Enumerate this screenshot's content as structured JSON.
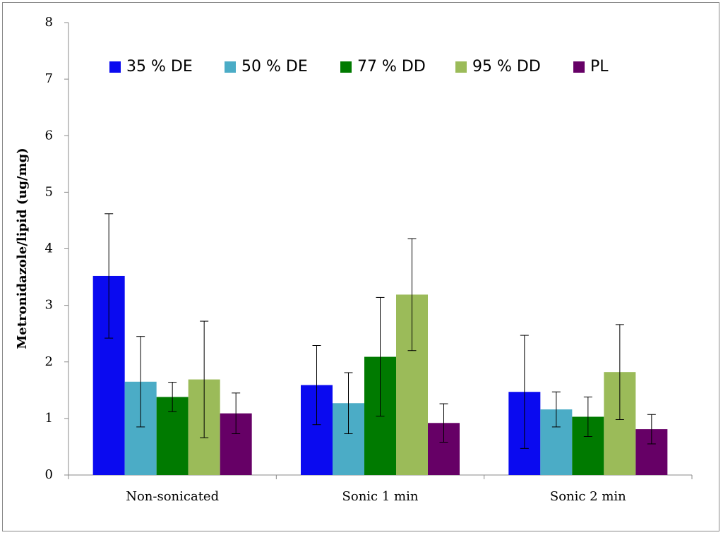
{
  "chart_data": {
    "type": "bar",
    "ylabel": "Metronidazole/lipid (ug/mg)",
    "xlabel": "",
    "ylim": [
      0,
      8
    ],
    "yticks": [
      "0",
      "1",
      "2",
      "3",
      "4",
      "5",
      "6",
      "7",
      "8"
    ],
    "categories": [
      "Non-sonicated",
      "Sonic 1 min",
      "Sonic 2 min"
    ],
    "legend_position": "top",
    "grid": false,
    "series": [
      {
        "name": "35 % DE",
        "color": "#0a0af0",
        "values": [
          3.52,
          1.59,
          1.47
        ],
        "errors": [
          1.1,
          0.7,
          1.0
        ]
      },
      {
        "name": "50 % DE",
        "color": "#4bacc6",
        "values": [
          1.65,
          1.27,
          1.16
        ],
        "errors": [
          0.8,
          0.54,
          0.31
        ]
      },
      {
        "name": "77 % DD",
        "color": "#007a00",
        "values": [
          1.38,
          2.09,
          1.03
        ],
        "errors": [
          0.26,
          1.05,
          0.35
        ]
      },
      {
        "name": "95 % DD",
        "color": "#9bbb59",
        "values": [
          1.69,
          3.19,
          1.82
        ],
        "errors": [
          1.03,
          0.99,
          0.84
        ]
      },
      {
        "name": "PL",
        "color": "#660066",
        "values": [
          1.09,
          0.92,
          0.81
        ],
        "errors": [
          0.36,
          0.34,
          0.26
        ]
      }
    ]
  }
}
